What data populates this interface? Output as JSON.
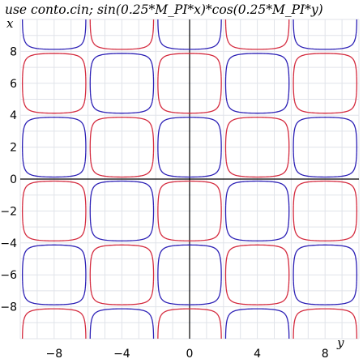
{
  "chart_data": {
    "type": "contour",
    "title": "use conto.cin; sin(0.25*M_PI*x)*cos(0.25*M_PI*y)",
    "function": "sin(0.25*M_PI*x)*cos(0.25*M_PI*y)",
    "vertical_axis_label": "x",
    "horizontal_axis_label": "y",
    "vertical_axis_range": [
      -10,
      10
    ],
    "horizontal_axis_range": [
      -10,
      10
    ],
    "vertical_ticks": [
      8,
      6,
      4,
      2,
      0,
      -2,
      -4,
      -6,
      -8
    ],
    "vertical_tick_labels": [
      "8",
      "6",
      "4",
      "2",
      "0",
      "−2",
      "−4",
      "−6",
      "−8"
    ],
    "horizontal_ticks": [
      -8,
      -4,
      0,
      4,
      8
    ],
    "horizontal_tick_labels": [
      "−8",
      "−4",
      "0",
      "4",
      "8"
    ],
    "grid": true,
    "grid_step": 1,
    "series": [
      {
        "level": 0.1,
        "color": "#2b1fb5"
      },
      {
        "level": -0.1,
        "color": "#d42a3e"
      }
    ]
  }
}
